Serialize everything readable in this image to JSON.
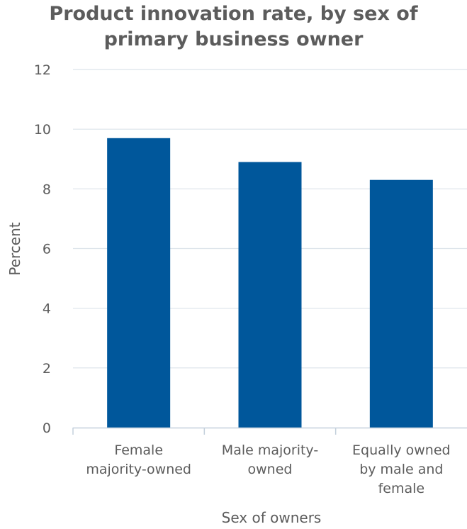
{
  "chart_data": {
    "type": "bar",
    "title_lines": [
      "Product innovation rate, by sex of",
      "primary business owner"
    ],
    "xlabel": "Sex of owners",
    "ylabel": "Percent",
    "ylim": [
      0,
      12
    ],
    "yticks": [
      0,
      2,
      4,
      6,
      8,
      10,
      12
    ],
    "grid": true,
    "categories": [
      [
        "Female",
        "majority-owned"
      ],
      [
        "Male majority-",
        "owned"
      ],
      [
        "Equally owned",
        "by male and",
        "female"
      ]
    ],
    "values": [
      9.7,
      8.9,
      8.3
    ],
    "bar_color": "#00579b",
    "grid_color": "#dce3ea",
    "axis_color": "#c4d0dc",
    "text_color": "#5c5c5c"
  }
}
